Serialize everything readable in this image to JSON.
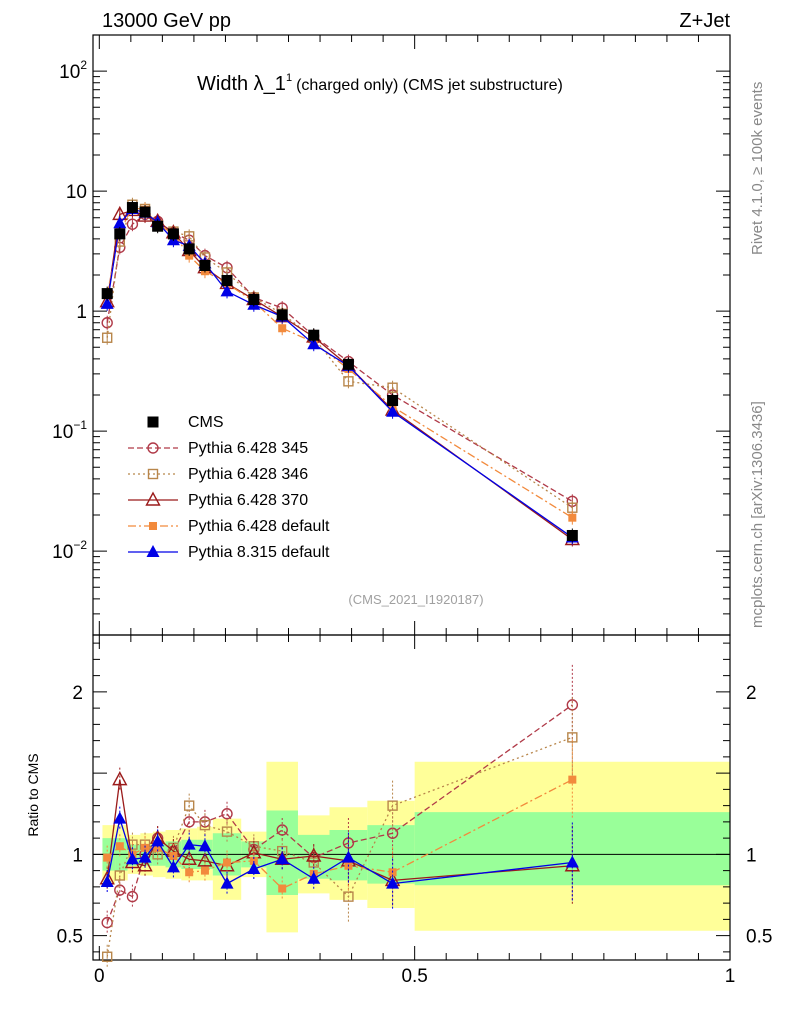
{
  "header": {
    "left_title": "13000 GeV pp",
    "right_title": "Z+Jet"
  },
  "side_labels": {
    "rivet": "Rivet 4.1.0, ≥ 100k events",
    "mcplots": "mcplots.cern.ch [arXiv:1306.3436]"
  },
  "colors": {
    "cms": "#000000",
    "p345": "#b03a48",
    "p346": "#b8864b",
    "p370": "#9b1b1b",
    "p6def": "#f28a3c",
    "p8def": "#0000e6",
    "band_inner": "#99ff99",
    "band_outer": "#ffff99"
  },
  "chart_data": [
    {
      "panel": "main",
      "type": "line",
      "title": "Width λ_1",
      "title_superscript": "1",
      "title_suffix": "(charged only) (CMS jet substructure)",
      "analysis_id": "(CMS_2021_I1920187)",
      "yscale": "log",
      "ylim": [
        0.002,
        200
      ],
      "y_ticks": [
        {
          "value": 0.01,
          "base": "10",
          "exp": "−2"
        },
        {
          "value": 0.1,
          "base": "10",
          "exp": "−1"
        },
        {
          "value": 1,
          "base": "1",
          "exp": ""
        },
        {
          "value": 10,
          "base": "10",
          "exp": ""
        },
        {
          "value": 100,
          "base": "10",
          "exp": "2"
        }
      ],
      "xlim": [
        -0.01,
        1.0
      ],
      "legend_position": "middle-left",
      "series": [
        {
          "key": "cms",
          "name": "CMS",
          "style": "square-filled",
          "dash": "",
          "x": [
            0.0125,
            0.0325,
            0.0525,
            0.0725,
            0.0925,
            0.1175,
            0.1425,
            0.1675,
            0.2025,
            0.245,
            0.29,
            0.34,
            0.395,
            0.465,
            0.75
          ],
          "y": [
            1.4,
            4.4,
            7.3,
            6.7,
            5.1,
            4.4,
            3.3,
            2.4,
            1.8,
            1.25,
            0.93,
            0.63,
            0.36,
            0.18,
            0.0135
          ]
        },
        {
          "key": "p345",
          "name": "Pythia 6.428 345",
          "style": "circle-open",
          "dash": "6,3",
          "x": [
            0.0125,
            0.0325,
            0.0525,
            0.0725,
            0.0925,
            0.1175,
            0.1425,
            0.1675,
            0.2025,
            0.245,
            0.29,
            0.34,
            0.395,
            0.465,
            0.75
          ],
          "y": [
            0.8,
            3.4,
            5.3,
            6.4,
            5.6,
            4.5,
            3.9,
            2.9,
            2.3,
            1.3,
            1.06,
            0.62,
            0.38,
            0.2,
            0.026
          ]
        },
        {
          "key": "p346",
          "name": "Pythia 6.428 346",
          "style": "square-open",
          "dash": "2,3",
          "x": [
            0.0125,
            0.0325,
            0.0525,
            0.0725,
            0.0925,
            0.1175,
            0.1425,
            0.1675,
            0.2025,
            0.245,
            0.29,
            0.34,
            0.395,
            0.465,
            0.75
          ],
          "y": [
            0.6,
            3.8,
            7.7,
            7.1,
            5.2,
            4.6,
            4.2,
            2.8,
            2.1,
            1.3,
            0.95,
            0.6,
            0.26,
            0.23,
            0.023
          ]
        },
        {
          "key": "p370",
          "name": "Pythia 6.428 370",
          "style": "triangle-open",
          "dash": "",
          "x": [
            0.0125,
            0.0325,
            0.0525,
            0.0725,
            0.0925,
            0.1175,
            0.1425,
            0.1675,
            0.2025,
            0.245,
            0.29,
            0.34,
            0.395,
            0.465,
            0.75
          ],
          "y": [
            1.2,
            6.4,
            6.9,
            6.2,
            5.6,
            4.5,
            3.2,
            2.3,
            1.7,
            1.25,
            0.9,
            0.61,
            0.35,
            0.15,
            0.0125
          ]
        },
        {
          "key": "p6def",
          "name": "Pythia 6.428 default",
          "style": "square-filled-small",
          "dash": "8,3,2,3",
          "x": [
            0.0125,
            0.0325,
            0.0525,
            0.0725,
            0.0925,
            0.1175,
            0.1425,
            0.1675,
            0.2025,
            0.245,
            0.29,
            0.34,
            0.395,
            0.465,
            0.75
          ],
          "y": [
            1.38,
            4.6,
            7.3,
            7.0,
            5.3,
            4.4,
            2.9,
            2.15,
            1.7,
            1.2,
            0.72,
            0.55,
            0.33,
            0.16,
            0.019
          ]
        },
        {
          "key": "p8def",
          "name": "Pythia 8.315 default",
          "style": "triangle-filled",
          "dash": "",
          "x": [
            0.0125,
            0.0325,
            0.0525,
            0.0725,
            0.0925,
            0.1175,
            0.1425,
            0.1675,
            0.2025,
            0.245,
            0.29,
            0.34,
            0.395,
            0.465,
            0.75
          ],
          "y": [
            1.15,
            5.4,
            7.1,
            6.6,
            5.5,
            3.9,
            3.5,
            2.5,
            1.46,
            1.13,
            0.9,
            0.53,
            0.35,
            0.145,
            0.013
          ]
        }
      ]
    },
    {
      "panel": "ratio",
      "type": "line",
      "ylabel": "Ratio to CMS",
      "ylim": [
        0.35,
        2.35
      ],
      "y_ticks": [
        0.5,
        1,
        2
      ],
      "x_ticks": [
        {
          "value": 0,
          "label": "0"
        },
        {
          "value": 0.5,
          "label": "0.5"
        },
        {
          "value": 1,
          "label": "1"
        }
      ],
      "xlim": [
        -0.01,
        1.0
      ],
      "bands": [
        {
          "xlo": 0.005,
          "xhi": 0.025,
          "inner": [
            0.9,
            1.1
          ],
          "outer": [
            0.82,
            1.18
          ]
        },
        {
          "xlo": 0.025,
          "xhi": 0.045,
          "inner": [
            0.9,
            1.1
          ],
          "outer": [
            0.84,
            1.18
          ]
        },
        {
          "xlo": 0.045,
          "xhi": 0.065,
          "inner": [
            0.93,
            1.06
          ],
          "outer": [
            0.88,
            1.12
          ]
        },
        {
          "xlo": 0.065,
          "xhi": 0.085,
          "inner": [
            0.93,
            1.06
          ],
          "outer": [
            0.87,
            1.13
          ]
        },
        {
          "xlo": 0.085,
          "xhi": 0.105,
          "inner": [
            0.93,
            1.07
          ],
          "outer": [
            0.86,
            1.14
          ]
        },
        {
          "xlo": 0.105,
          "xhi": 0.13,
          "inner": [
            0.92,
            1.08
          ],
          "outer": [
            0.85,
            1.15
          ]
        },
        {
          "xlo": 0.13,
          "xhi": 0.155,
          "inner": [
            0.91,
            1.09
          ],
          "outer": [
            0.84,
            1.16
          ]
        },
        {
          "xlo": 0.155,
          "xhi": 0.18,
          "inner": [
            0.91,
            1.09
          ],
          "outer": [
            0.84,
            1.17
          ]
        },
        {
          "xlo": 0.18,
          "xhi": 0.225,
          "inner": [
            0.87,
            1.13
          ],
          "outer": [
            0.72,
            1.22
          ]
        },
        {
          "xlo": 0.225,
          "xhi": 0.265,
          "inner": [
            0.92,
            1.08
          ],
          "outer": [
            0.86,
            1.14
          ]
        },
        {
          "xlo": 0.265,
          "xhi": 0.315,
          "inner": [
            0.75,
            1.27
          ],
          "outer": [
            0.52,
            1.57
          ]
        },
        {
          "xlo": 0.315,
          "xhi": 0.365,
          "inner": [
            0.85,
            1.12
          ],
          "outer": [
            0.76,
            1.24
          ]
        },
        {
          "xlo": 0.365,
          "xhi": 0.425,
          "inner": [
            0.84,
            1.15
          ],
          "outer": [
            0.72,
            1.29
          ]
        },
        {
          "xlo": 0.425,
          "xhi": 0.5,
          "inner": [
            0.82,
            1.18
          ],
          "outer": [
            0.67,
            1.33
          ]
        },
        {
          "xlo": 0.5,
          "xhi": 1.0,
          "inner": [
            0.81,
            1.26
          ],
          "outer": [
            0.53,
            1.57
          ]
        }
      ],
      "series": [
        {
          "key": "p345",
          "y": [
            0.58,
            0.78,
            0.74,
            1.0,
            1.1,
            1.02,
            1.2,
            1.2,
            1.25,
            1.03,
            1.15,
            0.98,
            1.07,
            1.13,
            1.92
          ]
        },
        {
          "key": "p346",
          "y": [
            0.37,
            0.87,
            1.06,
            1.06,
            1.0,
            1.04,
            1.3,
            1.18,
            1.14,
            1.05,
            1.02,
            0.95,
            0.74,
            1.3,
            1.72
          ]
        },
        {
          "key": "p370",
          "y": [
            0.85,
            1.46,
            0.95,
            0.93,
            1.1,
            1.02,
            0.97,
            0.96,
            0.93,
            1.01,
            0.97,
            0.99,
            0.96,
            0.84,
            0.93
          ]
        },
        {
          "key": "p6def",
          "y": [
            0.98,
            1.05,
            1.0,
            1.04,
            1.04,
            0.99,
            0.89,
            0.9,
            0.95,
            0.96,
            0.79,
            0.88,
            0.93,
            0.89,
            1.46
          ]
        },
        {
          "key": "p8def",
          "y": [
            0.83,
            1.22,
            0.97,
            0.98,
            1.08,
            0.92,
            1.06,
            1.05,
            0.82,
            0.91,
            0.97,
            0.85,
            0.98,
            0.82,
            0.95
          ]
        }
      ]
    }
  ]
}
